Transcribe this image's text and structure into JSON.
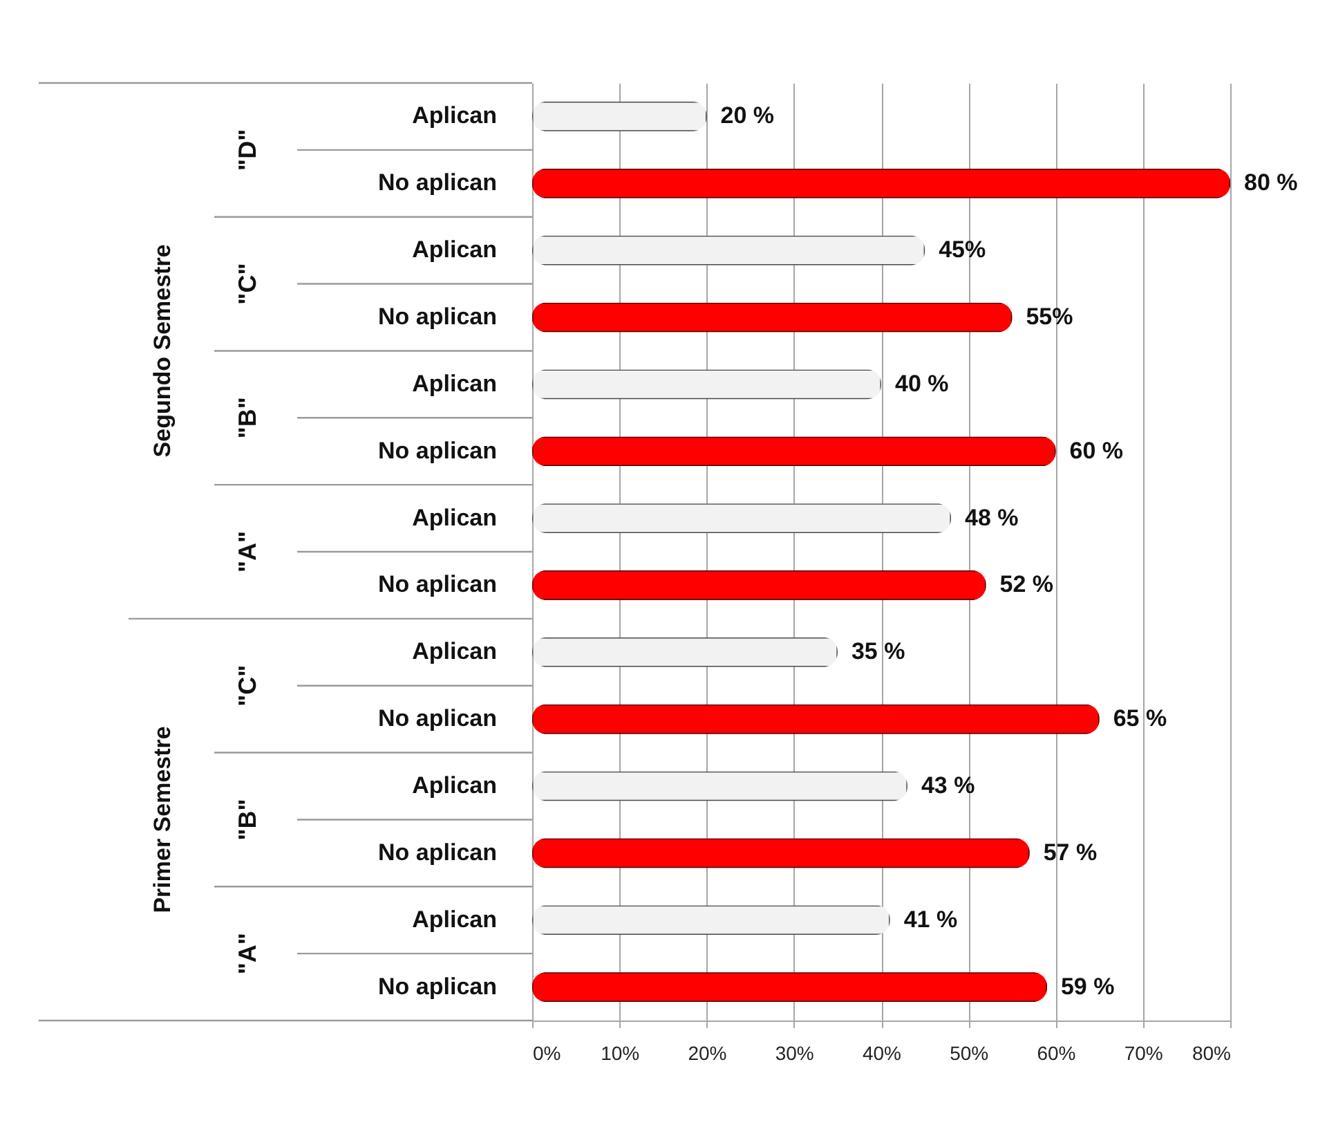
{
  "chart_data": {
    "type": "bar",
    "orientation": "horizontal",
    "categories": [
      "Aplican",
      "No aplican",
      "Aplican",
      "No aplican",
      "Aplican",
      "No aplican",
      "Aplican",
      "No aplican",
      "Aplican",
      "No aplican",
      "Aplican",
      "No aplican",
      "Aplican",
      "No aplican"
    ],
    "values": [
      20,
      80,
      45,
      55,
      40,
      60,
      48,
      52,
      35,
      65,
      43,
      57,
      41,
      59
    ],
    "value_labels": [
      "20 %",
      "80 %",
      "45%",
      "55%",
      "40 %",
      "60 %",
      "48 %",
      "52 %",
      "35 %",
      "65 %",
      "43 %",
      "57 %",
      "41 %",
      "59 %"
    ],
    "colors": [
      "#f2f2f2",
      "#ff0000",
      "#f2f2f2",
      "#ff0000",
      "#f2f2f2",
      "#ff0000",
      "#f2f2f2",
      "#ff0000",
      "#f2f2f2",
      "#ff0000",
      "#f2f2f2",
      "#ff0000",
      "#f2f2f2",
      "#ff0000"
    ],
    "annotations": [
      "\"D\"",
      "\"C\"",
      "\"B\"",
      "\"A\"",
      "\"C\"",
      "\"B\"",
      "\"A\"",
      "Segundo Semestre",
      "Primer Semestre"
    ],
    "xlim": [
      0,
      80
    ],
    "xticks": [
      {
        "value": 0,
        "label": "0%"
      },
      {
        "value": 10,
        "label": "10%"
      },
      {
        "value": 20,
        "label": "20%"
      },
      {
        "value": 30,
        "label": "30%"
      },
      {
        "value": 40,
        "label": "40%"
      },
      {
        "value": 50,
        "label": "50%"
      },
      {
        "value": 60,
        "label": "60%"
      },
      {
        "value": 70,
        "label": "70%"
      },
      {
        "value": 80,
        "label": "80%"
      }
    ],
    "grid": "x"
  }
}
